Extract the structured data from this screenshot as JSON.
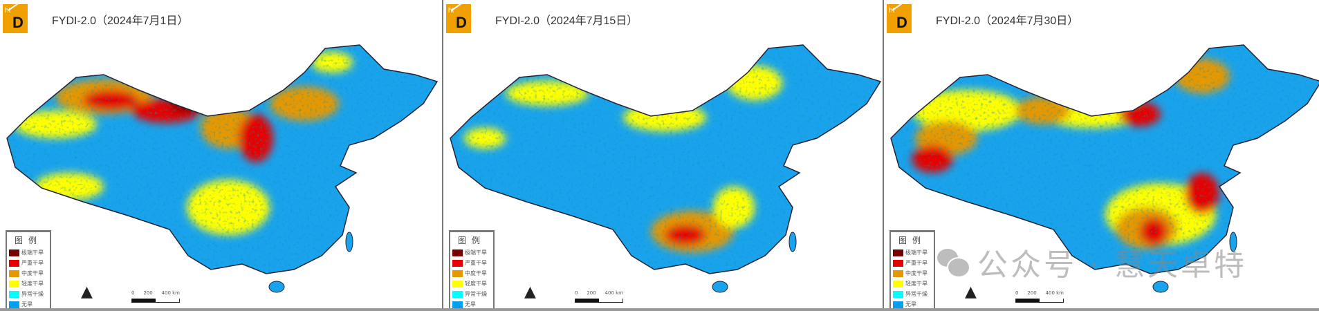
{
  "panels": [
    {
      "title": "FYDI-2.0（2024年7月1日）",
      "dominant": "dry-north"
    },
    {
      "title": "FYDI-2.0（2024年7月15日）",
      "dominant": "mostly-normal"
    },
    {
      "title": "FYDI-2.0（2024年7月30日）",
      "dominant": "dry-south-and-west"
    }
  ],
  "logo": {
    "text": "ht D",
    "color": "#f0a000"
  },
  "legend": {
    "title": "图例",
    "items": [
      {
        "label": "极端干旱",
        "color": "#7a0000"
      },
      {
        "label": "严重干旱",
        "color": "#e60000"
      },
      {
        "label": "中度干旱",
        "color": "#e69800"
      },
      {
        "label": "轻度干旱",
        "color": "#ffff00"
      },
      {
        "label": "异常干燥",
        "color": "#00ffff"
      },
      {
        "label": "无旱",
        "color": "#00a0f0"
      }
    ]
  },
  "north_arrow": "north-arrow-icon",
  "scale_bar": {
    "labels": [
      "0",
      "200",
      "400 km"
    ]
  },
  "watermark": {
    "text": "公众号 · 慧天卓特",
    "icon": "wechat-icon"
  }
}
